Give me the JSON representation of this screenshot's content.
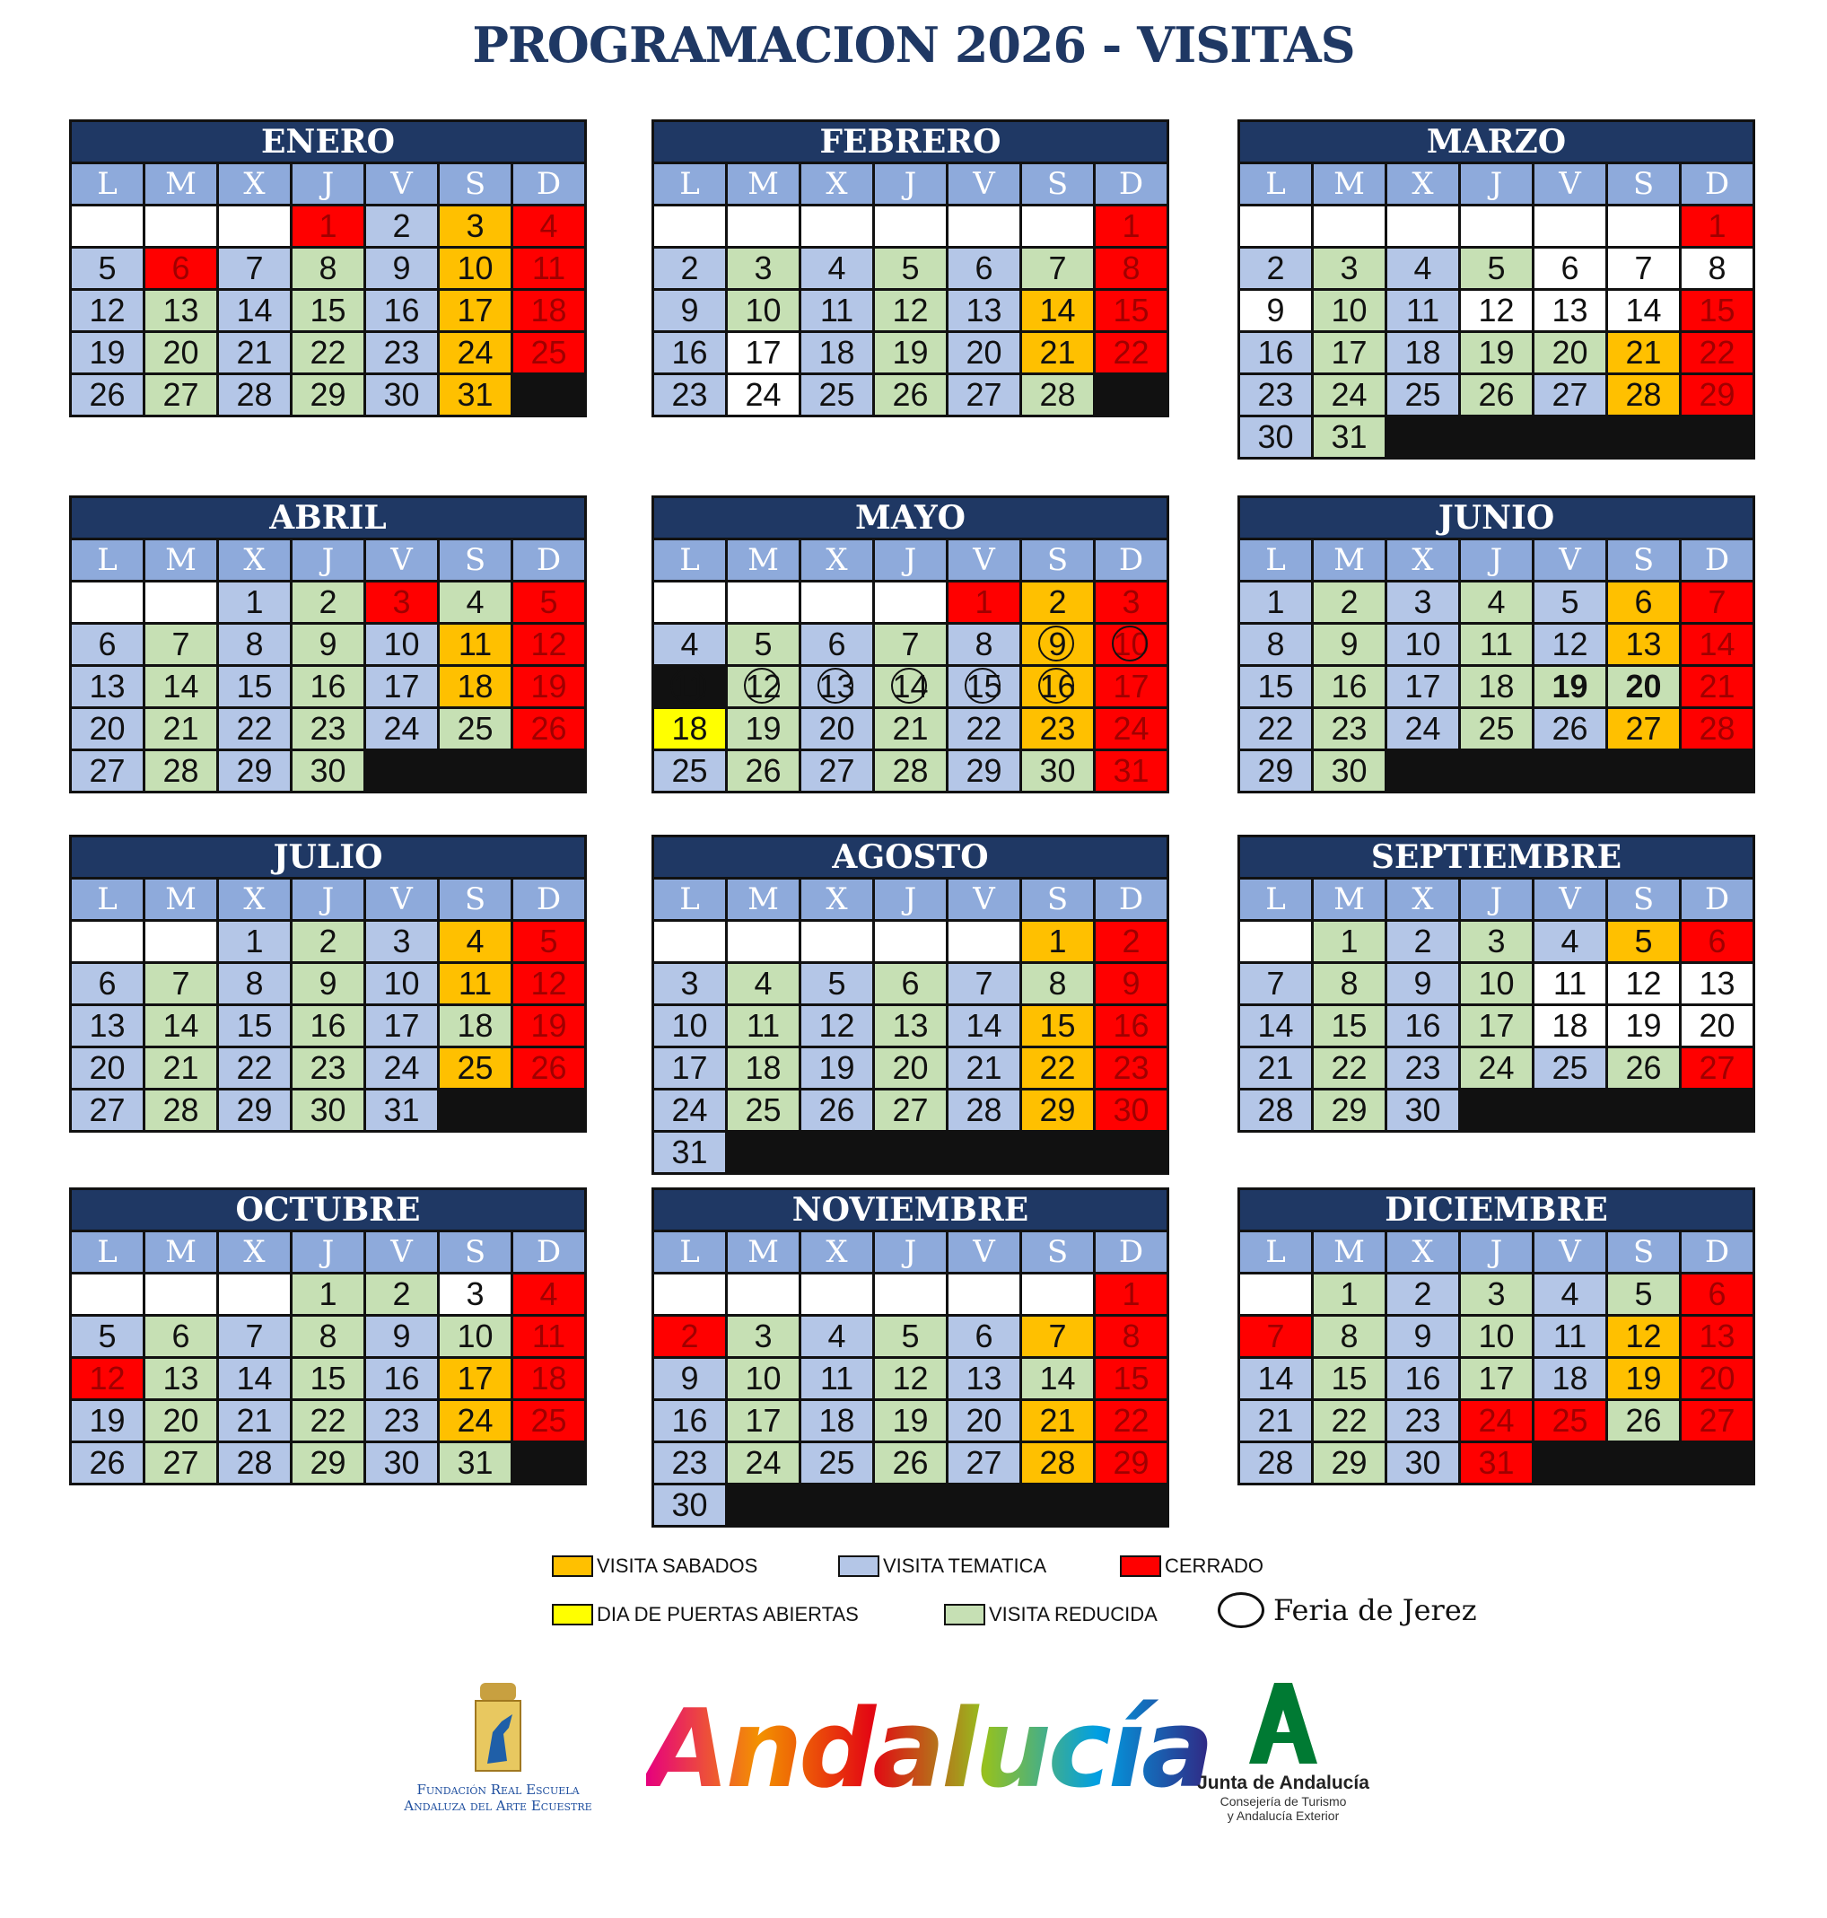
{
  "title": "PROGRAMACION 2026 - VISITAS",
  "weekdays": [
    "L",
    "M",
    "X",
    "J",
    "V",
    "S",
    "D"
  ],
  "months": [
    {
      "name": "ENERO",
      "days": [
        null,
        null,
        null,
        1,
        2,
        3,
        4,
        5,
        6,
        7,
        8,
        9,
        10,
        11,
        12,
        13,
        14,
        15,
        16,
        17,
        18,
        19,
        20,
        21,
        22,
        23,
        24,
        25,
        26,
        27,
        28,
        29,
        30,
        31
      ],
      "status": "WWWCTSCTCTRTSCTRTRTSCTRTRTSCTRTRTS"
    },
    {
      "name": "FEBRERO",
      "days": [
        null,
        null,
        null,
        null,
        null,
        null,
        1,
        2,
        3,
        4,
        5,
        6,
        7,
        8,
        9,
        10,
        11,
        12,
        13,
        14,
        15,
        16,
        17,
        18,
        19,
        20,
        21,
        22,
        23,
        24,
        25,
        26,
        27,
        28
      ],
      "status": "WWWWWWCTRTRTRCTRTRTSCTWTRTSCTWTRTR"
    },
    {
      "name": "MARZO",
      "days": [
        null,
        null,
        null,
        null,
        null,
        null,
        1,
        2,
        3,
        4,
        5,
        6,
        7,
        8,
        9,
        10,
        11,
        12,
        13,
        14,
        15,
        16,
        17,
        18,
        19,
        20,
        21,
        22,
        23,
        24,
        25,
        26,
        27,
        28,
        29,
        30,
        31
      ],
      "status": "WWWWWWCTRTRWWWWRTWWWCTRTRRSCTRTRTSCTR"
    },
    {
      "name": "ABRIL",
      "days": [
        null,
        null,
        1,
        2,
        3,
        4,
        5,
        6,
        7,
        8,
        9,
        10,
        11,
        12,
        13,
        14,
        15,
        16,
        17,
        18,
        19,
        20,
        21,
        22,
        23,
        24,
        25,
        26,
        27,
        28,
        29,
        30
      ],
      "status": "WWTRCRCTRTRTSCTRTRTSCTRTRTRCTRTR"
    },
    {
      "name": "MAYO",
      "days": [
        null,
        null,
        null,
        null,
        1,
        2,
        3,
        4,
        5,
        6,
        7,
        8,
        9,
        10,
        11,
        12,
        13,
        14,
        15,
        16,
        17,
        18,
        19,
        20,
        21,
        22,
        23,
        24,
        25,
        26,
        27,
        28,
        29,
        30,
        31
      ],
      "status": "WWWWCSCTRTRTscertrtsCPRTRTSCTRTRTRC"
    },
    {
      "name": "JUNIO",
      "days": [
        1,
        2,
        3,
        4,
        5,
        6,
        7,
        8,
        9,
        10,
        11,
        12,
        13,
        14,
        15,
        16,
        17,
        18,
        19,
        20,
        21,
        22,
        23,
        24,
        25,
        26,
        27,
        28,
        29,
        30
      ],
      "status": "TRTRTSCTRTRTSCTRTRGGCTRTRTSCTR"
    },
    {
      "name": "JULIO",
      "days": [
        null,
        null,
        1,
        2,
        3,
        4,
        5,
        6,
        7,
        8,
        9,
        10,
        11,
        12,
        13,
        14,
        15,
        16,
        17,
        18,
        19,
        20,
        21,
        22,
        23,
        24,
        25,
        26,
        27,
        28,
        29,
        30,
        31
      ],
      "status": "WWTRTSCTRTRTSCTRTRTRCTRTRTSCTRTRT"
    },
    {
      "name": "AGOSTO",
      "days": [
        null,
        null,
        null,
        null,
        null,
        1,
        2,
        3,
        4,
        5,
        6,
        7,
        8,
        9,
        10,
        11,
        12,
        13,
        14,
        15,
        16,
        17,
        18,
        19,
        20,
        21,
        22,
        23,
        24,
        25,
        26,
        27,
        28,
        29,
        30,
        31
      ],
      "status": "WWWWWSCTRTRTRCTRTRTSCTRTRTSCTRTRTSCT"
    },
    {
      "name": "SEPTIEMBRE",
      "days": [
        null,
        1,
        2,
        3,
        4,
        5,
        6,
        7,
        8,
        9,
        10,
        11,
        12,
        13,
        14,
        15,
        16,
        17,
        18,
        19,
        20,
        21,
        22,
        23,
        24,
        25,
        26,
        27,
        28,
        29,
        30
      ],
      "status": "WRTRTSCTRTRWWWTRTRWWWTRTRTRCTRT"
    },
    {
      "name": "OCTUBRE",
      "days": [
        null,
        null,
        null,
        1,
        2,
        3,
        4,
        5,
        6,
        7,
        8,
        9,
        10,
        11,
        12,
        13,
        14,
        15,
        16,
        17,
        18,
        19,
        20,
        21,
        22,
        23,
        24,
        25,
        26,
        27,
        28,
        29,
        30,
        31
      ],
      "status": "WWWRRWCTRTRTRCCRTRTSCTRTRTSCTRTRTR"
    },
    {
      "name": "NOVIEMBRE",
      "days": [
        null,
        null,
        null,
        null,
        null,
        null,
        1,
        2,
        3,
        4,
        5,
        6,
        7,
        8,
        9,
        10,
        11,
        12,
        13,
        14,
        15,
        16,
        17,
        18,
        19,
        20,
        21,
        22,
        23,
        24,
        25,
        26,
        27,
        28,
        29,
        30
      ],
      "status": "WWWWWWCCRTRTSCTRTRTRCTRTRTSCTRTRTSCT"
    },
    {
      "name": "DICIEMBRE",
      "days": [
        null,
        1,
        2,
        3,
        4,
        5,
        6,
        7,
        8,
        9,
        10,
        11,
        12,
        13,
        14,
        15,
        16,
        17,
        18,
        19,
        20,
        21,
        22,
        23,
        24,
        25,
        26,
        27,
        28,
        29,
        30,
        31
      ],
      "status": "WRTRTRCCRTRTSCTRTRTSCTRTCCRCTRTC"
    }
  ],
  "colors": {
    "W": "#ffffff",
    "T": "#b4c6e7",
    "R": "#c6e0b4",
    "S": "#ffc000",
    "C": "#ff0000",
    "P": "#ffff00",
    "G": "#c6e0b4"
  },
  "legend": [
    {
      "code": "S",
      "label": "VISITA SABADOS"
    },
    {
      "code": "T",
      "label": "VISITA TEMATICA"
    },
    {
      "code": "C",
      "label": "CERRADO"
    },
    {
      "code": "P",
      "label": "DIA DE PUERTAS ABIERTAS"
    },
    {
      "code": "R",
      "label": "VISITA REDUCIDA"
    },
    {
      "code": "circle",
      "label": "Feria de Jerez"
    }
  ],
  "logos": {
    "fundacion": [
      "Fundación Real Escuela",
      "Andaluza del Arte Ecuestre"
    ],
    "andalucia": "Andalucía",
    "junta": "Junta de Andalucía",
    "consejeria": [
      "Consejería de Turismo",
      "y Andalucía Exterior"
    ]
  }
}
